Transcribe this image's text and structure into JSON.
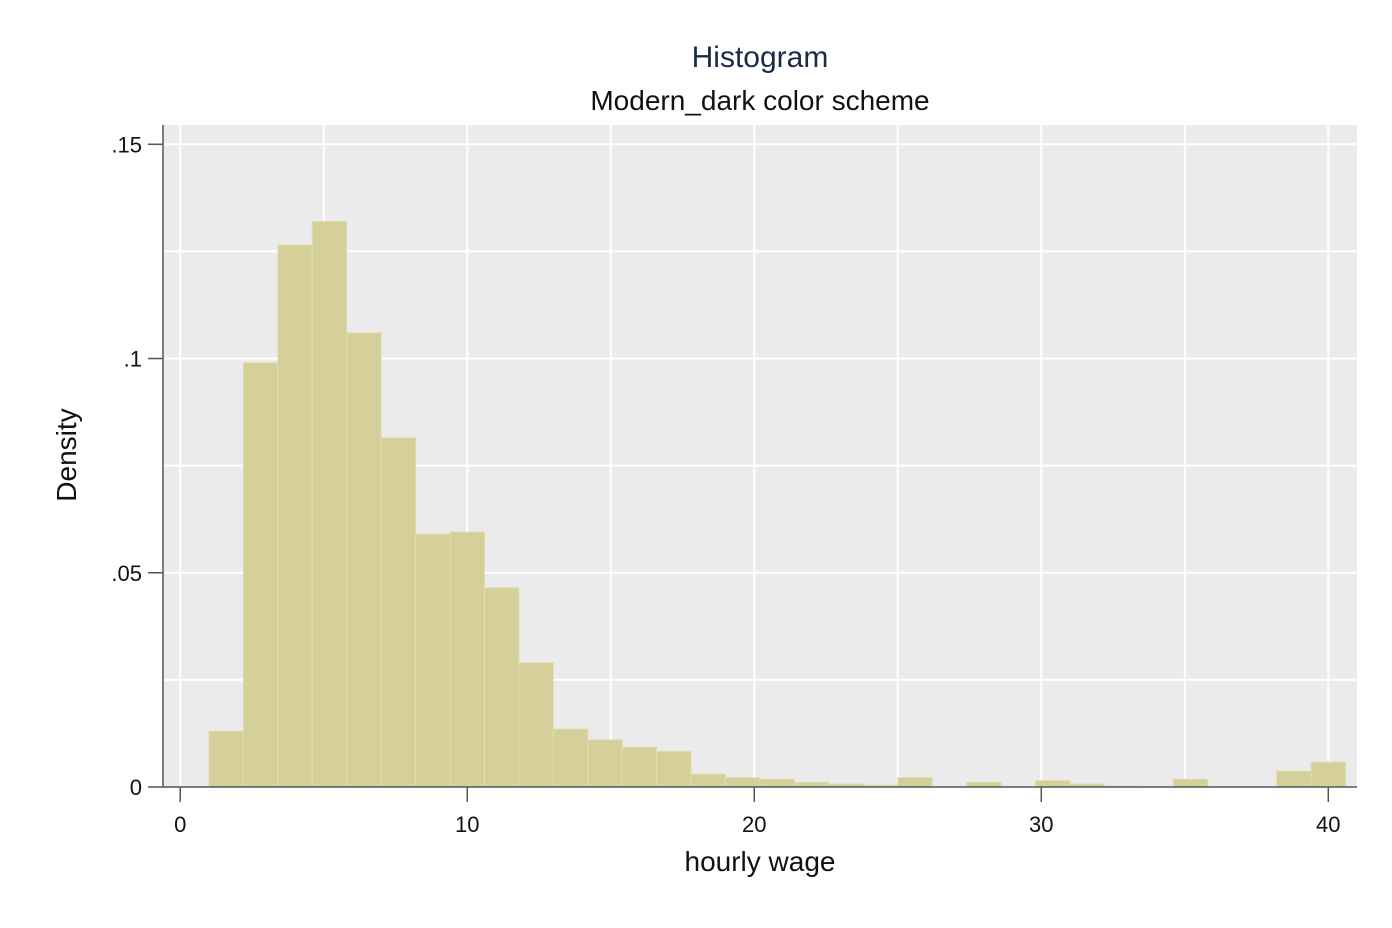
{
  "colors": {
    "plot_background": "#ebebeb",
    "gridline": "#ffffff",
    "bar_fill": "#d5cf9a",
    "bar_edge": "#e2dcae",
    "axis": "#555555",
    "title": "#1a2a4a",
    "text": "#111111"
  },
  "chart_data": {
    "type": "bar",
    "title": "Histogram",
    "subtitle": "Modern_dark color scheme",
    "xlabel": "hourly wage",
    "ylabel": "Density",
    "xlim": [
      -0.6,
      41.0
    ],
    "ylim": [
      0,
      0.1545
    ],
    "grid": true,
    "x_ticks": [
      0,
      10,
      20,
      30,
      40
    ],
    "x_tick_labels": [
      "0",
      "10",
      "20",
      "30",
      "40"
    ],
    "y_ticks": [
      0,
      0.05,
      0.1,
      0.15
    ],
    "y_tick_labels": [
      "0",
      ".05",
      ".1",
      ".15"
    ],
    "y_minor_gridlines": [
      0.025,
      0.075,
      0.125
    ],
    "x_minor_gridlines": [
      5,
      15,
      25,
      35
    ],
    "bin_start": 1.0,
    "bin_width": 1.2,
    "values": [
      0.013,
      0.099,
      0.1265,
      0.132,
      0.106,
      0.0815,
      0.059,
      0.0595,
      0.0465,
      0.029,
      0.0135,
      0.011,
      0.0093,
      0.0083,
      0.003,
      0.0022,
      0.0018,
      0.0011,
      0.0007,
      0.0004,
      0.0022,
      0.0,
      0.0011,
      0.0,
      0.0015,
      0.0007,
      0.0002,
      0.0,
      0.0018,
      0.0,
      0.0,
      0.0037,
      0.0058
    ]
  }
}
